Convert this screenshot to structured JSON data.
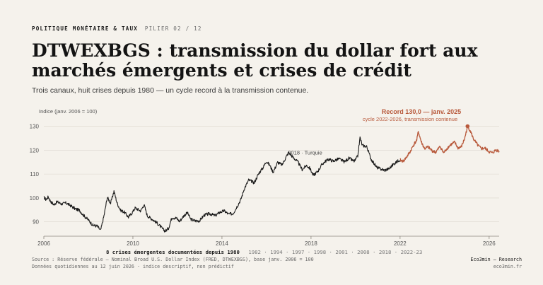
{
  "header": {
    "section": "POLITIQUE MONÉTAIRE & TAUX",
    "pillar": "PILIER 02 / 12",
    "title": "DTWEXBGS : transmission du dollar fort aux marchés émergents et crises de crédit",
    "subtitle": "Trois canaux, huit crises depuis 1980 — un cycle record à la transmission contenue."
  },
  "crises": {
    "label": "8 crises émergentes documentées depuis 1980",
    "years": "1982 · 1994 · 1997 · 1998 · 2001 · 2008 · 2018 · 2022-23"
  },
  "footer": {
    "source": "Source : Réserve fédérale — Nominal Broad U.S. Dollar Index (FRED, DTWEXBGS), base janv. 2006 = 100",
    "note": "Données quotidiennes au 12 juin 2026 · indice descriptif, non prédictif",
    "brand": "Eco3min — Research",
    "site": "eco3min.fr"
  },
  "colors": {
    "main": "#1a1a1a",
    "highlight": "#b8593b",
    "grid": "#dcd7ce"
  },
  "chart_data": {
    "type": "line",
    "ylabel": "Indice (janv. 2006 = 100)",
    "ylim": [
      84,
      134
    ],
    "xlim": [
      2006.0,
      2026.45
    ],
    "yticks": [
      90,
      100,
      110,
      120,
      130
    ],
    "xticks": [
      2006,
      2010,
      2014,
      2018,
      2022,
      2026
    ],
    "grid": true,
    "highlight_from": 2022.0,
    "series": [
      {
        "values": [
          [
            2006.0,
            100.2
          ],
          [
            2006.1,
            99.3
          ],
          [
            2006.2,
            100.5
          ],
          [
            2006.3,
            98.6
          ],
          [
            2006.45,
            97.2
          ],
          [
            2006.6,
            98.4
          ],
          [
            2006.8,
            97.5
          ],
          [
            2007.0,
            97.9
          ],
          [
            2007.2,
            96.8
          ],
          [
            2007.4,
            95.5
          ],
          [
            2007.6,
            94.8
          ],
          [
            2007.8,
            92.6
          ],
          [
            2008.0,
            90.8
          ],
          [
            2008.2,
            88.6
          ],
          [
            2008.4,
            88.2
          ],
          [
            2008.55,
            86.4
          ],
          [
            2008.7,
            92.5
          ],
          [
            2008.85,
            100.3
          ],
          [
            2009.0,
            97.8
          ],
          [
            2009.15,
            102.8
          ],
          [
            2009.3,
            97.6
          ],
          [
            2009.45,
            94.8
          ],
          [
            2009.6,
            94.2
          ],
          [
            2009.8,
            92.0
          ],
          [
            2009.95,
            93.6
          ],
          [
            2010.1,
            95.8
          ],
          [
            2010.35,
            94.6
          ],
          [
            2010.5,
            97.2
          ],
          [
            2010.65,
            92.5
          ],
          [
            2010.9,
            90.9
          ],
          [
            2011.1,
            89.4
          ],
          [
            2011.3,
            87.4
          ],
          [
            2011.45,
            86.1
          ],
          [
            2011.6,
            87.3
          ],
          [
            2011.75,
            91.8
          ],
          [
            2011.95,
            91.6
          ],
          [
            2012.1,
            90.2
          ],
          [
            2012.3,
            92.7
          ],
          [
            2012.45,
            93.8
          ],
          [
            2012.6,
            91.1
          ],
          [
            2012.8,
            90.4
          ],
          [
            2013.0,
            90.5
          ],
          [
            2013.2,
            92.8
          ],
          [
            2013.45,
            93.4
          ],
          [
            2013.7,
            92.6
          ],
          [
            2013.9,
            94.0
          ],
          [
            2014.1,
            94.6
          ],
          [
            2014.3,
            93.2
          ],
          [
            2014.5,
            93.5
          ],
          [
            2014.7,
            96.8
          ],
          [
            2014.85,
            99.4
          ],
          [
            2015.0,
            103.8
          ],
          [
            2015.2,
            107.5
          ],
          [
            2015.45,
            106.4
          ],
          [
            2015.65,
            110.2
          ],
          [
            2015.85,
            112.8
          ],
          [
            2016.0,
            115.4
          ],
          [
            2016.15,
            113.6
          ],
          [
            2016.3,
            110.8
          ],
          [
            2016.5,
            114.9
          ],
          [
            2016.7,
            113.8
          ],
          [
            2016.9,
            117.5
          ],
          [
            2017.0,
            119.1
          ],
          [
            2017.2,
            116.9
          ],
          [
            2017.4,
            115.2
          ],
          [
            2017.6,
            111.9
          ],
          [
            2017.8,
            113.6
          ],
          [
            2017.95,
            112.4
          ],
          [
            2018.1,
            109.5
          ],
          [
            2018.3,
            111.1
          ],
          [
            2018.5,
            114.1
          ],
          [
            2018.65,
            115.4
          ],
          [
            2018.8,
            116.2
          ],
          [
            2019.0,
            115.4
          ],
          [
            2019.25,
            116.4
          ],
          [
            2019.5,
            115.1
          ],
          [
            2019.7,
            116.6
          ],
          [
            2019.95,
            115.3
          ],
          [
            2020.1,
            117.5
          ],
          [
            2020.2,
            125.3
          ],
          [
            2020.3,
            122.0
          ],
          [
            2020.5,
            121.5
          ],
          [
            2020.7,
            116.2
          ],
          [
            2020.95,
            112.8
          ],
          [
            2021.1,
            112.2
          ],
          [
            2021.3,
            111.6
          ],
          [
            2021.5,
            112.2
          ],
          [
            2021.7,
            114.1
          ],
          [
            2021.95,
            115.8
          ],
          [
            2022.0,
            115.8
          ]
        ]
      },
      {
        "values": [
          [
            2022.0,
            115.8
          ],
          [
            2022.15,
            115.4
          ],
          [
            2022.3,
            117.2
          ],
          [
            2022.45,
            119.3
          ],
          [
            2022.6,
            122.1
          ],
          [
            2022.75,
            124.2
          ],
          [
            2022.82,
            127.8
          ],
          [
            2022.95,
            123.5
          ],
          [
            2023.1,
            120.6
          ],
          [
            2023.25,
            121.3
          ],
          [
            2023.45,
            119.7
          ],
          [
            2023.6,
            119.1
          ],
          [
            2023.8,
            121.6
          ],
          [
            2023.95,
            118.8
          ],
          [
            2024.1,
            120.6
          ],
          [
            2024.25,
            122.1
          ],
          [
            2024.45,
            123.3
          ],
          [
            2024.6,
            120.9
          ],
          [
            2024.75,
            121.4
          ],
          [
            2024.9,
            124.8
          ],
          [
            2025.03,
            130.0
          ],
          [
            2025.15,
            128.2
          ],
          [
            2025.3,
            124.6
          ],
          [
            2025.5,
            121.9
          ],
          [
            2025.65,
            120.6
          ],
          [
            2025.8,
            120.9
          ],
          [
            2026.0,
            119.3
          ],
          [
            2026.15,
            118.8
          ],
          [
            2026.3,
            120.1
          ],
          [
            2026.45,
            119.6
          ]
        ]
      }
    ],
    "annotations": [
      {
        "x": 2017.0,
        "y": 119.1,
        "text": "2018 · Turquie"
      },
      {
        "x": 2025.03,
        "y": 130.0,
        "text": "Record 130,0 — janv. 2025",
        "sub": "cycle 2022-2026, transmission contenue"
      }
    ]
  }
}
